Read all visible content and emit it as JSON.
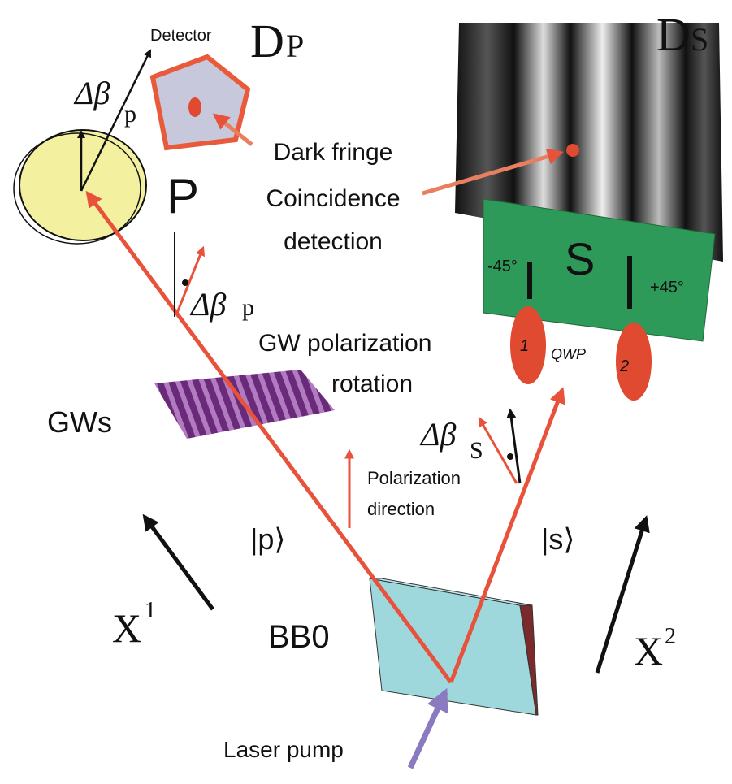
{
  "detector_p": {
    "caption": "Detector",
    "symbol": "D",
    "subscript": "P"
  },
  "detector_s": {
    "symbol": "D",
    "subscript": "S"
  },
  "polarizer_p": {
    "label": "P",
    "delta_symbol": "Δβ",
    "delta_subscript": "p"
  },
  "gw_delta": {
    "symbol": "Δβ",
    "subscript": "p"
  },
  "dark_fringe_note": [
    "Dark fringe",
    "Coincidence",
    "detection"
  ],
  "screen_s": {
    "label": "S",
    "left_angle": "-45°",
    "right_angle": "+45°"
  },
  "qwp": {
    "label": "QWP",
    "plate_1": "1",
    "plate_2": "2"
  },
  "gw_rotation": [
    "GW polarization",
    "rotation"
  ],
  "gws": "GWs",
  "delta_s": {
    "symbol": "Δβ",
    "subscript": "S"
  },
  "polarization_note": [
    "Polarization",
    "direction"
  ],
  "state_p": "|p⟩",
  "state_s": "|s⟩",
  "axis_x1": {
    "symbol": "X",
    "superscript": "1"
  },
  "axis_x2": {
    "symbol": "X",
    "superscript": "2"
  },
  "crystal": "BB0",
  "pump": "Laser pump"
}
